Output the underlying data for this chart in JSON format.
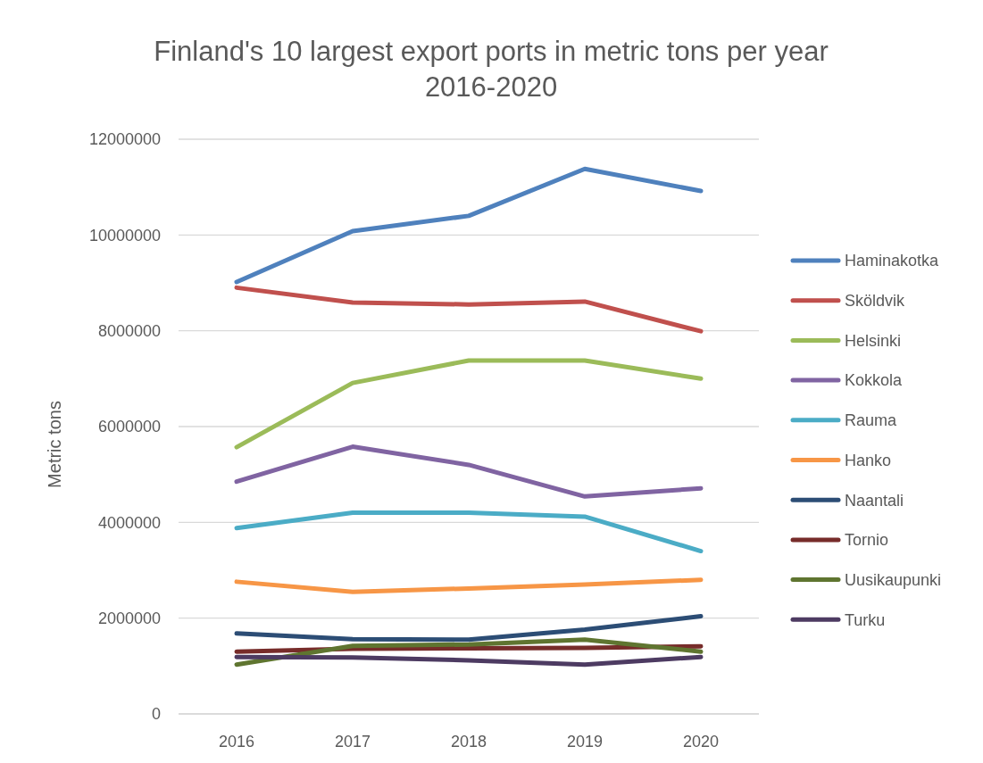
{
  "chart_data": {
    "type": "line",
    "title": "Finland's 10 largest export ports in metric tons per year 2016-2020",
    "ylabel": "Metric tons",
    "categories": [
      "2016",
      "2017",
      "2018",
      "2019",
      "2020"
    ],
    "ylim": [
      0,
      12000000
    ],
    "yticks": [
      0,
      2000000,
      4000000,
      6000000,
      8000000,
      10000000,
      12000000
    ],
    "grid": "y",
    "legend": "right",
    "marker": "none",
    "series": [
      {
        "name": "Haminakotka",
        "color": "#4f81bd",
        "values": [
          9020000,
          10080000,
          10400000,
          11380000,
          10920000
        ]
      },
      {
        "name": "Sköldvik",
        "color": "#c0504d",
        "values": [
          8900000,
          8590000,
          8550000,
          8610000,
          7990000
        ]
      },
      {
        "name": "Helsinki",
        "color": "#9bbb59",
        "values": [
          5570000,
          6910000,
          7380000,
          7380000,
          7000000
        ]
      },
      {
        "name": "Kokkola",
        "color": "#8064a2",
        "values": [
          4850000,
          5580000,
          5200000,
          4540000,
          4710000
        ]
      },
      {
        "name": "Rauma",
        "color": "#4bacc6",
        "values": [
          3880000,
          4200000,
          4200000,
          4120000,
          3400000
        ]
      },
      {
        "name": "Hanko",
        "color": "#f79646",
        "values": [
          2760000,
          2550000,
          2620000,
          2700000,
          2800000
        ]
      },
      {
        "name": "Naantali",
        "color": "#2c4d75",
        "values": [
          1680000,
          1560000,
          1550000,
          1760000,
          2040000
        ]
      },
      {
        "name": "Tornio",
        "color": "#772c2a",
        "values": [
          1300000,
          1360000,
          1370000,
          1380000,
          1410000
        ]
      },
      {
        "name": "Uusikaupunki",
        "color": "#5f7530",
        "values": [
          1030000,
          1420000,
          1450000,
          1550000,
          1300000
        ]
      },
      {
        "name": "Turku",
        "color": "#4d3b62",
        "values": [
          1190000,
          1180000,
          1120000,
          1030000,
          1190000
        ]
      }
    ]
  }
}
